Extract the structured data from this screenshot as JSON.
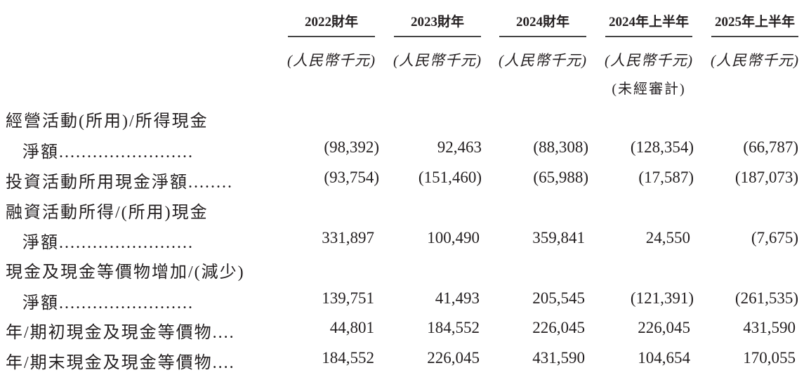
{
  "columns": [
    {
      "year": "2022財年",
      "unit": "(人民幣千元)"
    },
    {
      "year": "2023財年",
      "unit": "(人民幣千元)"
    },
    {
      "year": "2024財年",
      "unit": "(人民幣千元)"
    },
    {
      "year": "2024年上半年",
      "unit": "(人民幣千元)",
      "note": "(未經審計)"
    },
    {
      "year": "2025年上半年",
      "unit": "(人民幣千元)"
    }
  ],
  "rows": [
    {
      "label_line1": "經營活動(所用)/所得現金",
      "label": "淨額........................",
      "values": [
        "(98,392)",
        "92,463",
        "(88,308)",
        "(128,354)",
        "(66,787)"
      ]
    },
    {
      "label": "投資活動所用現金淨額........",
      "values": [
        "(93,754)",
        "(151,460)",
        "(65,988)",
        "(17,587)",
        "(187,073)"
      ]
    },
    {
      "label_line1": "融資活動所得/(所用)現金",
      "label": "淨額........................",
      "values": [
        "331,897",
        "100,490",
        "359,841",
        "24,550",
        "(7,675)"
      ]
    },
    {
      "label_line1": "現金及現金等價物增加/(減少)",
      "label": "淨額........................",
      "values": [
        "139,751",
        "41,493",
        "205,545",
        "(121,391)",
        "(261,535)"
      ]
    },
    {
      "label": "年/期初現金及現金等價物....",
      "values": [
        "44,801",
        "184,552",
        "226,045",
        "226,045",
        "431,590"
      ]
    },
    {
      "label": "年/期末現金及現金等價物....",
      "values": [
        "184,552",
        "226,045",
        "431,590",
        "104,654",
        "170,055"
      ]
    }
  ]
}
